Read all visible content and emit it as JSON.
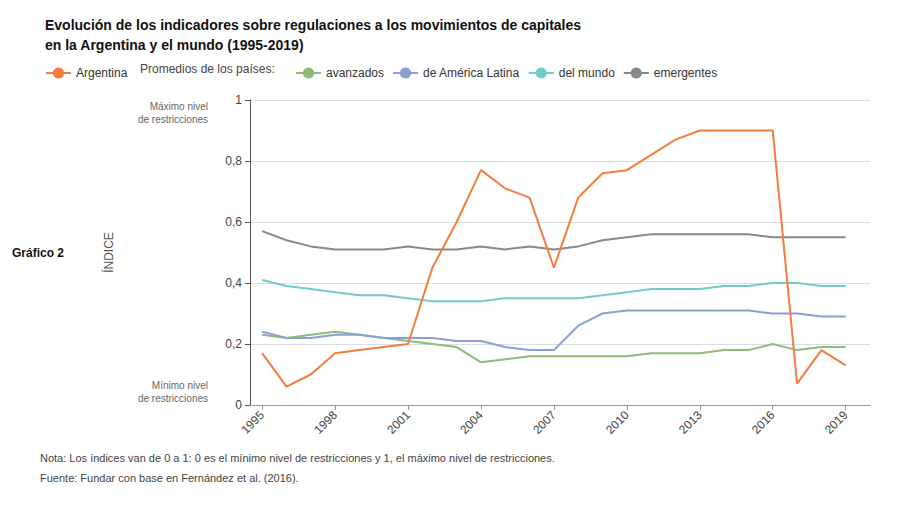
{
  "chart_data": {
    "type": "line",
    "title": "Evolución de los indicadores sobre regulaciones a los movimientos de capitales\nen la Argentina y el mundo (1995-2019)",
    "ylabel": "ÍNDICE",
    "figure_label": "Gráfico 2",
    "legend_title": "Promedios de los países:",
    "annotations": [
      "Máximo nivel\nde restricciones",
      "Mínimo nivel\nde restricciones"
    ],
    "note": "Nota: Los índices van de 0 a 1: 0 es el mínimo nivel de restricciones y 1, el máximo nivel de restricciones.",
    "source": "Fuente: Fundar con base en Fernández et al. (2016).",
    "x": [
      1995,
      1996,
      1997,
      1998,
      1999,
      2000,
      2001,
      2002,
      2003,
      2004,
      2005,
      2006,
      2007,
      2008,
      2009,
      2010,
      2011,
      2012,
      2013,
      2014,
      2015,
      2016,
      2017,
      2018,
      2019
    ],
    "series": [
      {
        "name": "Argentina",
        "color": "#F47C3C",
        "values": [
          0.17,
          0.06,
          0.1,
          0.17,
          0.18,
          0.19,
          0.2,
          0.45,
          0.6,
          0.77,
          0.71,
          0.68,
          0.45,
          0.68,
          0.76,
          0.77,
          0.82,
          0.87,
          0.9,
          0.9,
          0.9,
          0.9,
          0.07,
          0.18,
          0.13
        ]
      },
      {
        "name": "avanzados",
        "color": "#8FBA7A",
        "values": [
          0.23,
          0.22,
          0.23,
          0.24,
          0.23,
          0.22,
          0.21,
          0.2,
          0.19,
          0.14,
          0.15,
          0.16,
          0.16,
          0.16,
          0.16,
          0.16,
          0.17,
          0.17,
          0.17,
          0.18,
          0.18,
          0.2,
          0.18,
          0.19,
          0.19
        ]
      },
      {
        "name": "de América Latina",
        "color": "#8B9FD4",
        "values": [
          0.24,
          0.22,
          0.22,
          0.23,
          0.23,
          0.22,
          0.22,
          0.22,
          0.21,
          0.21,
          0.19,
          0.18,
          0.18,
          0.26,
          0.3,
          0.31,
          0.31,
          0.31,
          0.31,
          0.31,
          0.31,
          0.3,
          0.3,
          0.29,
          0.29
        ]
      },
      {
        "name": "del mundo",
        "color": "#70CCCA",
        "values": [
          0.41,
          0.39,
          0.38,
          0.37,
          0.36,
          0.36,
          0.35,
          0.34,
          0.34,
          0.34,
          0.35,
          0.35,
          0.35,
          0.35,
          0.36,
          0.37,
          0.38,
          0.38,
          0.38,
          0.39,
          0.39,
          0.4,
          0.4,
          0.39,
          0.39
        ]
      },
      {
        "name": "emergentes",
        "color": "#888888",
        "values": [
          0.57,
          0.54,
          0.52,
          0.51,
          0.51,
          0.51,
          0.52,
          0.51,
          0.51,
          0.52,
          0.51,
          0.52,
          0.51,
          0.52,
          0.54,
          0.55,
          0.56,
          0.56,
          0.56,
          0.56,
          0.56,
          0.55,
          0.55,
          0.55,
          0.55
        ]
      }
    ],
    "xlim": [
      1994.5,
      2020
    ],
    "xticks": [
      1995,
      1998,
      2001,
      2004,
      2007,
      2010,
      2013,
      2016,
      2019
    ],
    "ylim": [
      0,
      1
    ],
    "yticks": [
      0,
      {
        "value": 0.2,
        "label": "0,2"
      },
      {
        "value": 0.4,
        "label": "0,4"
      },
      {
        "value": 0.6,
        "label": "0,6"
      },
      {
        "value": 0.8,
        "label": "0,8"
      },
      1
    ],
    "grid": true,
    "legend": "top"
  }
}
